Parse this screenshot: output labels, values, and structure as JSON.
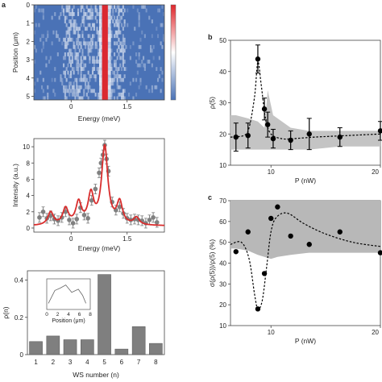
{
  "panel_labels": {
    "a": "a",
    "b": "b",
    "c": "c"
  },
  "chart_data": [
    {
      "id": "heatmap",
      "type": "heatmap",
      "xlabel": "Energy (meV)",
      "ylabel": "Position (μm)",
      "x_tick_labels": [
        "0",
        "1.5"
      ],
      "y_tick_labels": [
        "0",
        "1",
        "2",
        "3",
        "4",
        "5"
      ],
      "xlim": [
        -1.0,
        2.5
      ],
      "ylim": [
        0,
        5.2
      ],
      "peak_energy": 0.9,
      "colors": {
        "low": "#4a72b6",
        "mid": "#ffffff",
        "high": "#e0262b"
      }
    },
    {
      "id": "spectrum",
      "type": "line",
      "xlabel": "Energy (meV)",
      "ylabel": "Intensity (a.u.)",
      "x_tick_labels": [
        "0",
        "1.5"
      ],
      "y_tick_labels": [
        "0",
        "2",
        "4",
        "6",
        "8",
        "10"
      ],
      "xlim": [
        -1.0,
        2.5
      ],
      "ylim": [
        -0.5,
        11
      ],
      "fit_peaks": [
        {
          "center": -0.55,
          "amplitude": 1.6,
          "width": 0.09
        },
        {
          "center": -0.15,
          "amplitude": 2.0,
          "width": 0.09
        },
        {
          "center": 0.2,
          "amplitude": 2.7,
          "width": 0.09
        },
        {
          "center": 0.53,
          "amplitude": 3.6,
          "width": 0.09
        },
        {
          "center": 0.9,
          "amplitude": 9.6,
          "width": 0.1
        },
        {
          "center": 1.3,
          "amplitude": 2.7,
          "width": 0.09
        },
        {
          "center": 1.75,
          "amplitude": 0.9,
          "width": 0.09
        }
      ],
      "data_points": {
        "x": [
          -0.85,
          -0.75,
          -0.65,
          -0.55,
          -0.45,
          -0.35,
          -0.25,
          -0.15,
          -0.05,
          0.05,
          0.15,
          0.25,
          0.35,
          0.45,
          0.55,
          0.65,
          0.75,
          0.8,
          0.85,
          0.9,
          0.95,
          1.0,
          1.1,
          1.2,
          1.3,
          1.4,
          1.5,
          1.6,
          1.7,
          1.8,
          1.9,
          2.0,
          2.1,
          2.2,
          2.3
        ],
        "y": [
          1.3,
          2.0,
          1.2,
          1.5,
          1.1,
          0.9,
          1.3,
          2.0,
          1.0,
          0.6,
          1.1,
          2.5,
          1.6,
          1.2,
          3.4,
          4.8,
          6.8,
          8.0,
          9.0,
          10.2,
          8.5,
          7.0,
          3.2,
          2.2,
          2.6,
          1.8,
          1.2,
          1.0,
          1.1,
          1.0,
          0.9,
          0.6,
          1.0,
          1.3,
          0.7
        ]
      },
      "colors": {
        "fit": "#d92d2d",
        "points": "#808080"
      }
    },
    {
      "id": "ws_histogram",
      "type": "bar",
      "xlabel": "WS number (n)",
      "ylabel": "ρ(n)",
      "categories": [
        "1",
        "2",
        "3",
        "4",
        "5",
        "6",
        "7",
        "8"
      ],
      "values": [
        0.07,
        0.1,
        0.08,
        0.08,
        0.43,
        0.03,
        0.15,
        0.06
      ],
      "ylim": [
        0,
        0.45
      ],
      "y_tick_labels": [
        "0",
        "0.2",
        "0.4"
      ],
      "colors": {
        "bar": "#7f7f7f"
      },
      "inset": {
        "xlabel": "Position (μm)",
        "x_tick_labels": [
          "0",
          "2",
          "4",
          "6",
          "8"
        ],
        "xlim": [
          0,
          8
        ],
        "x": [
          0.3,
          1.5,
          2.5,
          3.5,
          4.6,
          5.8,
          6.6,
          7.2
        ],
        "y": [
          0.2,
          0.62,
          0.7,
          0.8,
          0.56,
          0.66,
          0.46,
          0.2
        ]
      }
    },
    {
      "id": "panel_b",
      "type": "scatter",
      "xlabel": "P (nW)",
      "ylabel": "ρ(5)",
      "xlim": [
        6.3,
        20
      ],
      "ylim": [
        10,
        50
      ],
      "x_tick_labels": [
        "10",
        "20"
      ],
      "y_tick_labels": [
        "10",
        "20",
        "30",
        "40",
        "50"
      ],
      "x": [
        6.8,
        7.9,
        8.8,
        9.4,
        9.7,
        10.2,
        11.8,
        13.5,
        16.3,
        20.0
      ],
      "y": [
        19,
        19.5,
        44,
        28,
        23,
        18.5,
        18,
        20,
        19,
        21
      ],
      "yerr": [
        4.5,
        4,
        4.5,
        3.5,
        4,
        3,
        3,
        5,
        3,
        3
      ],
      "band_upper": [
        26,
        25,
        24,
        22,
        34,
        26,
        22,
        21,
        21,
        21
      ],
      "band_lower": [
        15,
        15,
        15,
        15,
        15,
        15,
        15,
        15,
        16,
        16
      ],
      "fit_x": [
        6.3,
        7.5,
        8.0,
        8.5,
        8.8,
        9.1,
        9.5,
        10.0,
        11.0,
        12.0,
        14.0,
        17.0,
        20.0
      ],
      "fit_y": [
        19,
        19.5,
        22,
        32,
        43,
        36,
        25,
        20,
        18.5,
        18.5,
        19,
        19.5,
        20
      ],
      "colors": {
        "band": "#c4c4c4",
        "points": "#000000"
      }
    },
    {
      "id": "panel_c",
      "type": "scatter",
      "xlabel": "P (nW)",
      "ylabel": "σ(ρ(5))/ρ(5) (%)",
      "xlim": [
        6.3,
        20
      ],
      "ylim": [
        10,
        70
      ],
      "x_tick_labels": [
        "10",
        "20"
      ],
      "y_tick_labels": [
        "10",
        "20",
        "30",
        "40",
        "50",
        "60",
        "70"
      ],
      "x": [
        6.8,
        7.9,
        8.8,
        9.4,
        10.0,
        10.6,
        11.8,
        13.5,
        16.3,
        20.0
      ],
      "y": [
        45.5,
        55,
        18,
        35,
        61.5,
        67,
        53,
        49,
        55,
        45
      ],
      "band_upper": [
        70,
        70,
        70,
        70,
        70,
        70,
        70,
        70,
        70,
        70
      ],
      "band_lower": [
        47,
        46,
        44,
        43,
        42,
        43,
        44,
        45,
        45,
        45
      ],
      "fit_x": [
        6.3,
        7.3,
        8.0,
        8.5,
        8.8,
        9.2,
        9.6,
        10.0,
        10.5,
        11.5,
        13.0,
        15.0,
        17.5,
        20.0
      ],
      "fit_y": [
        49,
        50,
        42,
        25,
        18,
        22,
        38,
        55,
        62,
        64,
        59,
        54,
        50,
        48
      ],
      "colors": {
        "band": "#b8b8b8",
        "points": "#000000"
      }
    }
  ]
}
